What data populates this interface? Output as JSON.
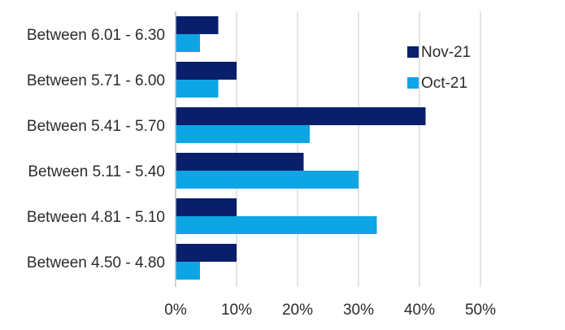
{
  "chart_data": {
    "type": "bar",
    "orientation": "horizontal",
    "title": "",
    "xlabel": "",
    "ylabel": "",
    "categories": [
      "Between 6.01 - 6.30",
      "Between 5.71 - 6.00",
      "Between 5.41 - 5.70",
      "Between 5.11 - 5.40",
      "Between 4.81 - 5.10",
      "Between 4.50 - 4.80"
    ],
    "series": [
      {
        "name": "Nov-21",
        "color": "#0a1f6b",
        "values": [
          7,
          10,
          41,
          21,
          10,
          10
        ]
      },
      {
        "name": "Oct-21",
        "color": "#0ea5e4",
        "values": [
          4,
          7,
          22,
          30,
          33,
          4
        ]
      }
    ],
    "xlim": [
      0,
      50
    ],
    "x_ticks": [
      0,
      10,
      20,
      30,
      40,
      50
    ],
    "x_tick_labels": [
      "0%",
      "10%",
      "20%",
      "30%",
      "40%",
      "50%"
    ],
    "grid": "vertical",
    "legend_position": "top-right"
  }
}
